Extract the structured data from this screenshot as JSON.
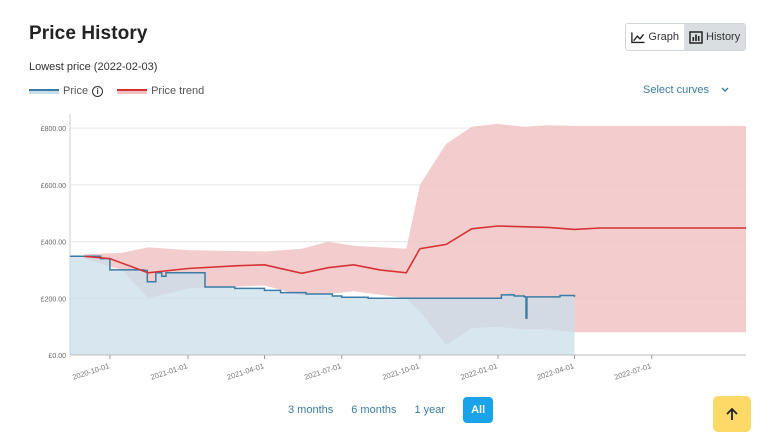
{
  "header": {
    "title": "Price History",
    "subtitle": "Lowest price (2022-02-03)"
  },
  "view_toggle": {
    "graph_label": "Graph",
    "history_label": "History"
  },
  "legend": {
    "price_label": "Price",
    "trend_label": "Price trend",
    "info_glyph": "i"
  },
  "select_curves": {
    "label": "Select curves"
  },
  "ranges": {
    "three_months": "3 months",
    "six_months": "6 months",
    "one_year": "1 year",
    "all": "All"
  },
  "colors": {
    "price_line": "#3a7ca5",
    "price_fill": "#c9dde9",
    "trend_line": "#d63232",
    "trend_band": "#f1c4c4",
    "active_range": "#1aa3e8",
    "scroll_button": "#ffd968"
  },
  "chart_data": {
    "type": "area",
    "ylim": [
      0,
      850
    ],
    "yticks": [
      0,
      200,
      400,
      600,
      800
    ],
    "ytick_labels": [
      "£0.00",
      "£200.00",
      "£400.00",
      "£600.00",
      "£800.00"
    ],
    "xlim": [
      "2020-08-15",
      "2022-10-20"
    ],
    "xticks": [
      "2020-10-01",
      "2021-01-01",
      "2021-04-01",
      "2021-07-01",
      "2021-10-01",
      "2022-01-01",
      "2022-04-01",
      "2022-07-01"
    ],
    "series": [
      {
        "name": "Price",
        "points": [
          [
            "2020-08-15",
            348
          ],
          [
            "2020-09-15",
            348
          ],
          [
            "2020-09-20",
            340
          ],
          [
            "2020-10-01",
            300
          ],
          [
            "2020-11-10",
            298
          ],
          [
            "2020-11-14",
            258
          ],
          [
            "2020-11-22",
            258
          ],
          [
            "2020-11-24",
            290
          ],
          [
            "2020-12-01",
            278
          ],
          [
            "2020-12-06",
            290
          ],
          [
            "2021-01-20",
            290
          ],
          [
            "2021-01-21",
            240
          ],
          [
            "2021-02-20",
            240
          ],
          [
            "2021-02-25",
            235
          ],
          [
            "2021-04-01",
            228
          ],
          [
            "2021-04-20",
            220
          ],
          [
            "2021-05-20",
            215
          ],
          [
            "2021-06-20",
            208
          ],
          [
            "2021-07-01",
            204
          ],
          [
            "2021-08-01",
            200
          ],
          [
            "2021-10-01",
            200
          ],
          [
            "2021-12-31",
            200
          ],
          [
            "2022-01-05",
            212
          ],
          [
            "2022-01-20",
            208
          ],
          [
            "2022-02-01",
            205
          ],
          [
            "2022-02-03",
            130
          ],
          [
            "2022-02-04",
            205
          ],
          [
            "2022-03-15",
            210
          ],
          [
            "2022-04-01",
            205
          ]
        ]
      },
      {
        "name": "Price trend",
        "points": [
          [
            "2020-09-01",
            348
          ],
          [
            "2020-10-01",
            340
          ],
          [
            "2020-11-15",
            290
          ],
          [
            "2021-01-01",
            305
          ],
          [
            "2021-03-01",
            315
          ],
          [
            "2021-04-01",
            318
          ],
          [
            "2021-05-15",
            288
          ],
          [
            "2021-06-15",
            308
          ],
          [
            "2021-07-15",
            318
          ],
          [
            "2021-08-15",
            300
          ],
          [
            "2021-09-15",
            290
          ],
          [
            "2021-10-01",
            375
          ],
          [
            "2021-11-01",
            390
          ],
          [
            "2021-12-01",
            445
          ],
          [
            "2022-01-01",
            455
          ],
          [
            "2022-03-01",
            450
          ],
          [
            "2022-04-01",
            443
          ],
          [
            "2022-05-01",
            448
          ],
          [
            "2022-10-20",
            448
          ]
        ]
      },
      {
        "name": "Price trend range",
        "upper": [
          [
            "2020-09-01",
            355
          ],
          [
            "2020-10-15",
            360
          ],
          [
            "2020-11-15",
            380
          ],
          [
            "2021-01-01",
            370
          ],
          [
            "2021-04-01",
            365
          ],
          [
            "2021-05-15",
            375
          ],
          [
            "2021-06-15",
            400
          ],
          [
            "2021-07-15",
            385
          ],
          [
            "2021-09-15",
            375
          ],
          [
            "2021-10-01",
            600
          ],
          [
            "2021-11-01",
            745
          ],
          [
            "2021-12-01",
            805
          ],
          [
            "2022-01-01",
            815
          ],
          [
            "2022-02-01",
            805
          ],
          [
            "2022-03-01",
            810
          ],
          [
            "2022-04-01",
            808
          ],
          [
            "2022-10-20",
            808
          ]
        ],
        "lower": [
          [
            "2020-09-01",
            340
          ],
          [
            "2020-10-15",
            300
          ],
          [
            "2020-11-15",
            200
          ],
          [
            "2021-01-01",
            235
          ],
          [
            "2021-04-01",
            245
          ],
          [
            "2021-05-15",
            210
          ],
          [
            "2021-06-15",
            215
          ],
          [
            "2021-07-15",
            225
          ],
          [
            "2021-09-15",
            200
          ],
          [
            "2021-10-01",
            155
          ],
          [
            "2021-11-01",
            35
          ],
          [
            "2021-12-01",
            95
          ],
          [
            "2022-01-01",
            100
          ],
          [
            "2022-02-01",
            90
          ],
          [
            "2022-03-01",
            90
          ],
          [
            "2022-04-01",
            80
          ],
          [
            "2022-10-20",
            80
          ]
        ]
      }
    ]
  }
}
